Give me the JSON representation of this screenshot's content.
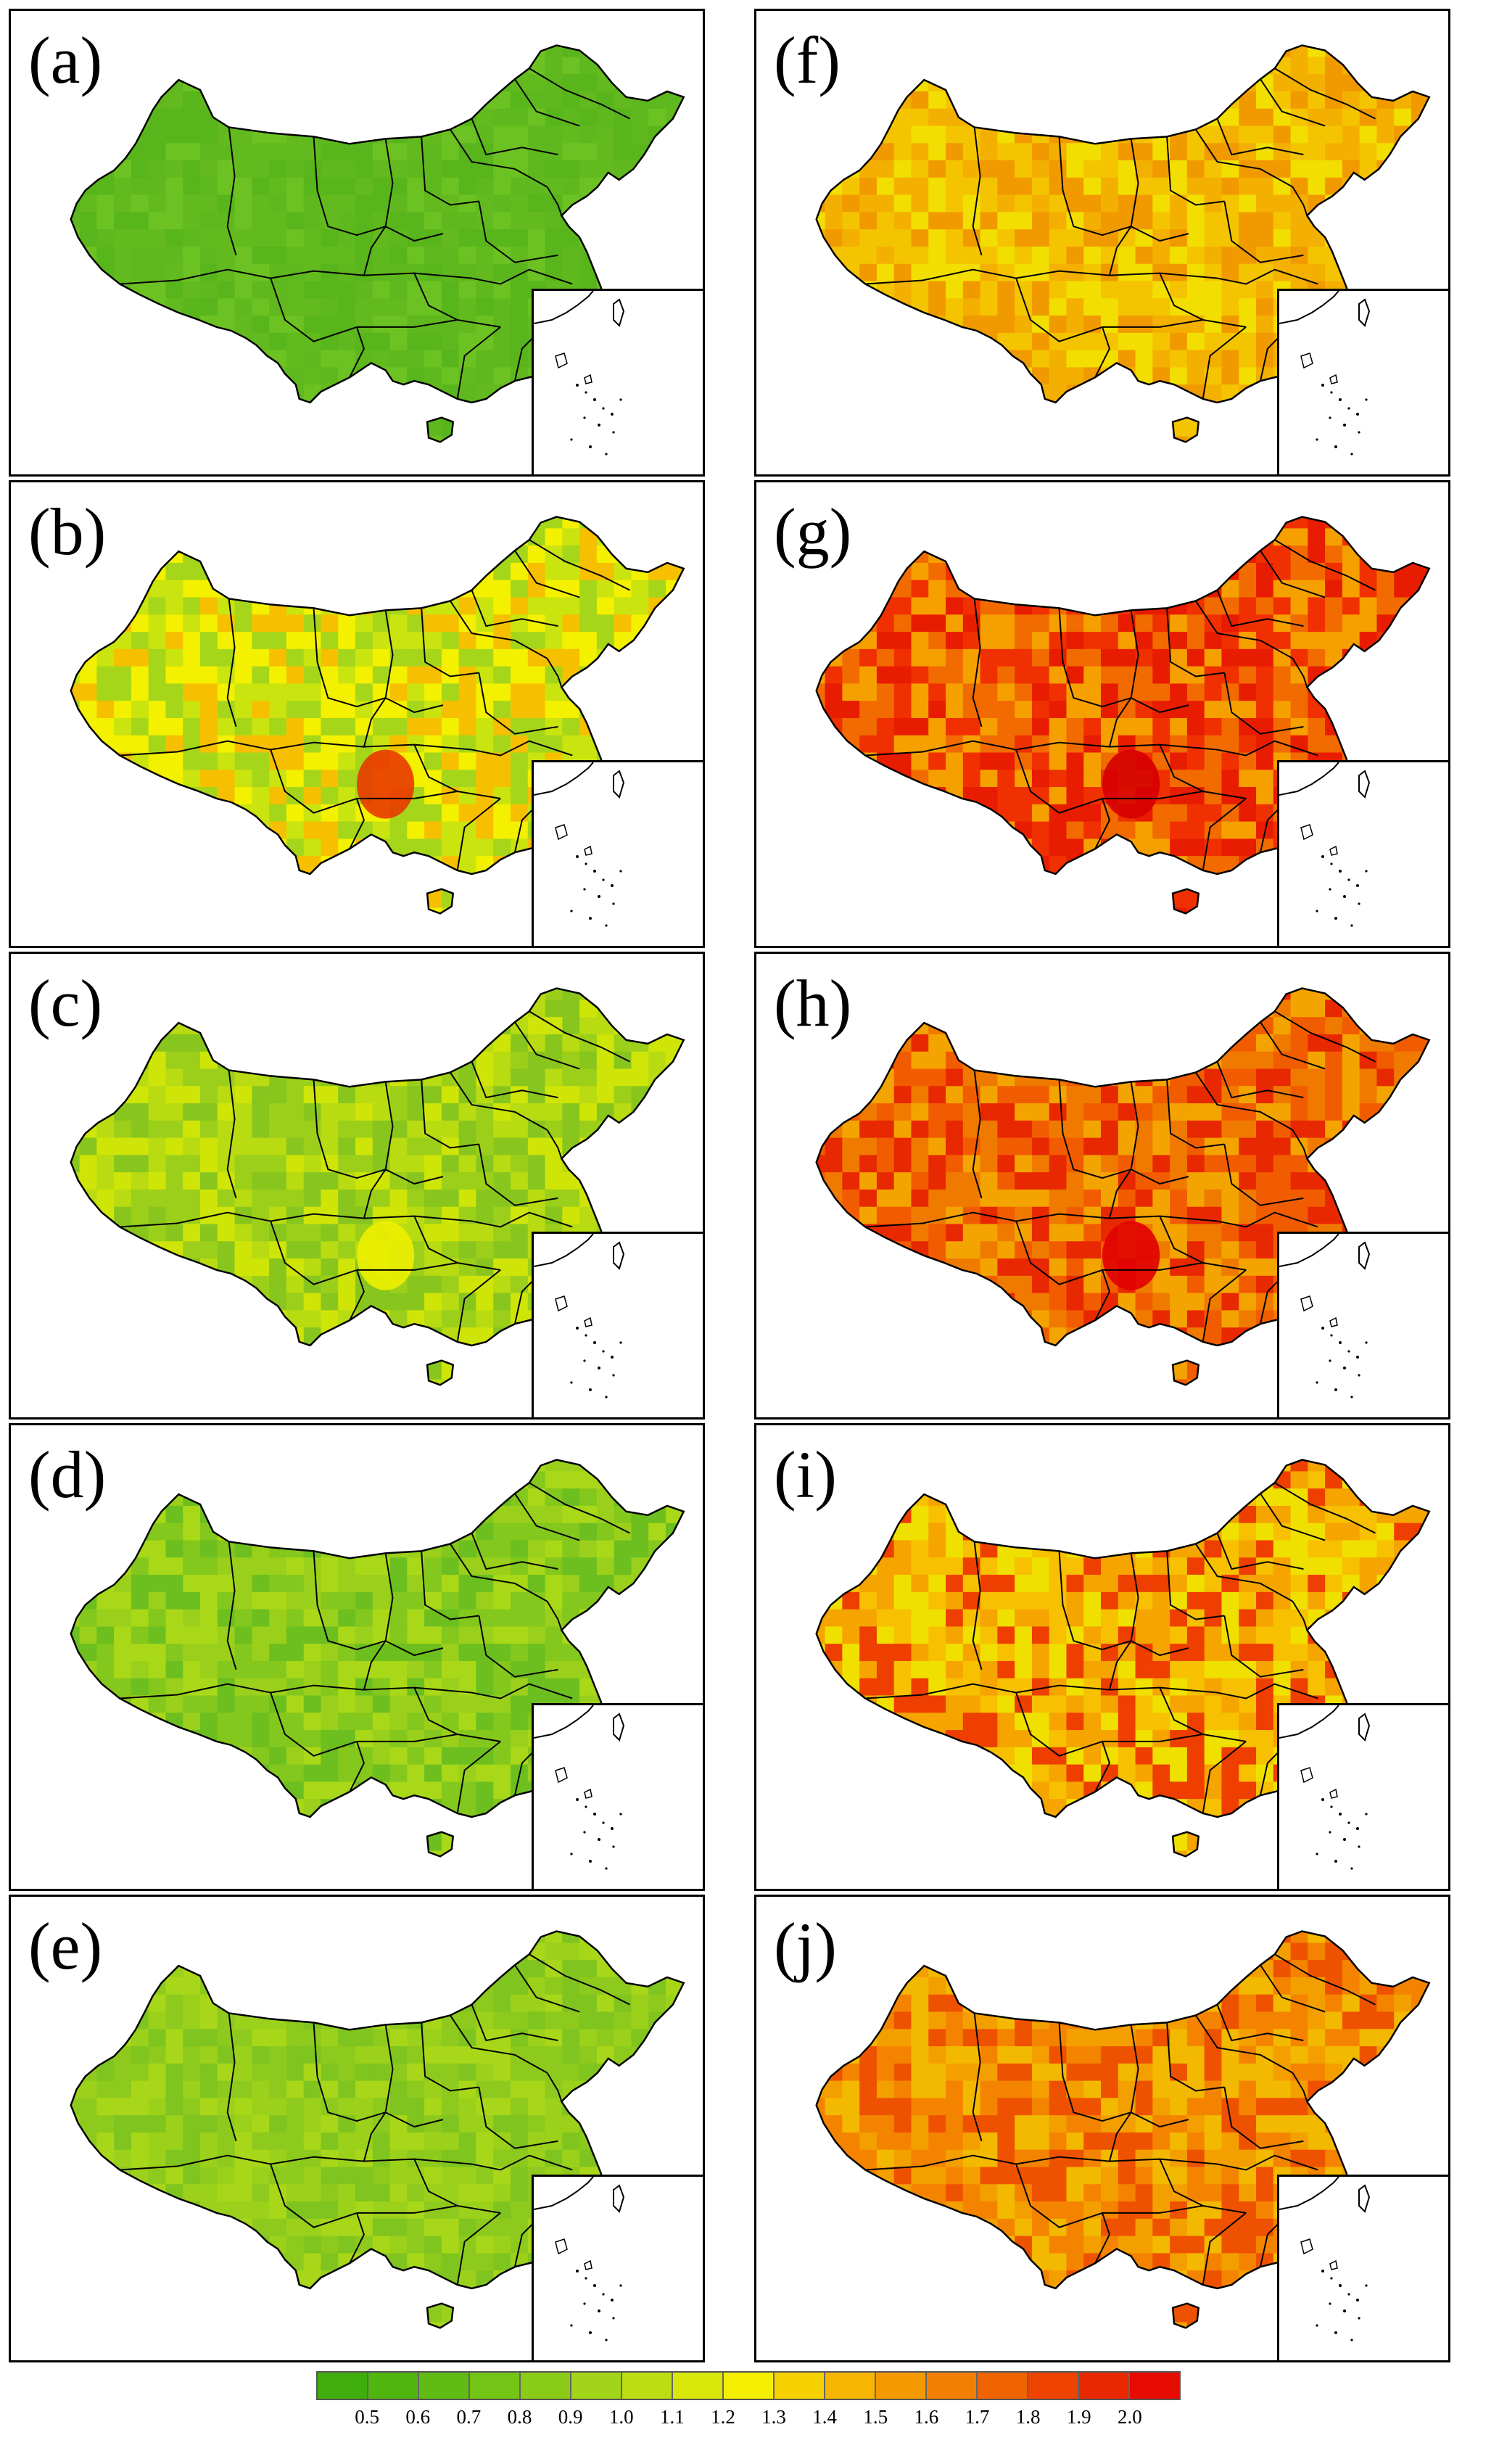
{
  "panels": [
    {
      "id": "a",
      "label": "(a)",
      "palette": [
        "#58b51b",
        "#62ba1e",
        "#6cc222",
        "#5fb81d"
      ]
    },
    {
      "id": "b",
      "label": "(b)",
      "palette": [
        "#a6d61a",
        "#c9e40f",
        "#f3f000",
        "#f6c000"
      ],
      "hotspot": "#e83a00"
    },
    {
      "id": "c",
      "label": "(c)",
      "palette": [
        "#88c61e",
        "#9ccf1a",
        "#b8db12",
        "#cfe508"
      ],
      "hotspot": "#eef000"
    },
    {
      "id": "d",
      "label": "(d)",
      "palette": [
        "#6cbf1f",
        "#84c71d",
        "#9ad01b",
        "#a9d818"
      ]
    },
    {
      "id": "e",
      "label": "(e)",
      "palette": [
        "#7fc41f",
        "#8dca1d",
        "#9bd11b",
        "#a8d719"
      ]
    },
    {
      "id": "f",
      "label": "(f)",
      "palette": [
        "#f4b000",
        "#f5c400",
        "#f2de00",
        "#f09a00"
      ]
    },
    {
      "id": "g",
      "label": "(g)",
      "palette": [
        "#e81c00",
        "#f03000",
        "#f26b00",
        "#f6a000"
      ],
      "hotspot": "#d60000"
    },
    {
      "id": "h",
      "label": "(h)",
      "palette": [
        "#f25c00",
        "#f07a00",
        "#f4a400",
        "#e82800"
      ],
      "hotspot": "#e00000"
    },
    {
      "id": "i",
      "label": "(i)",
      "palette": [
        "#f5a400",
        "#f7c000",
        "#f0e000",
        "#ee3e00"
      ]
    },
    {
      "id": "j",
      "label": "(j)",
      "palette": [
        "#f48400",
        "#f49f00",
        "#f3b800",
        "#ee5200"
      ]
    }
  ],
  "colorbar": {
    "colors": [
      "#3fae0c",
      "#4fb50f",
      "#60bc12",
      "#74c416",
      "#8acb18",
      "#a2d41a",
      "#bcdd14",
      "#d9e60a",
      "#f4ee00",
      "#f6d300",
      "#f6b500",
      "#f49a00",
      "#f37f00",
      "#f06400",
      "#ee4400",
      "#ea2800",
      "#e60b00"
    ],
    "labels": [
      "0.5",
      "0.6",
      "0.7",
      "0.8",
      "0.9",
      "1.0",
      "1.1",
      "1.2",
      "1.3",
      "1.4",
      "1.5",
      "1.6",
      "1.7",
      "1.8",
      "1.9",
      "2.0"
    ]
  }
}
